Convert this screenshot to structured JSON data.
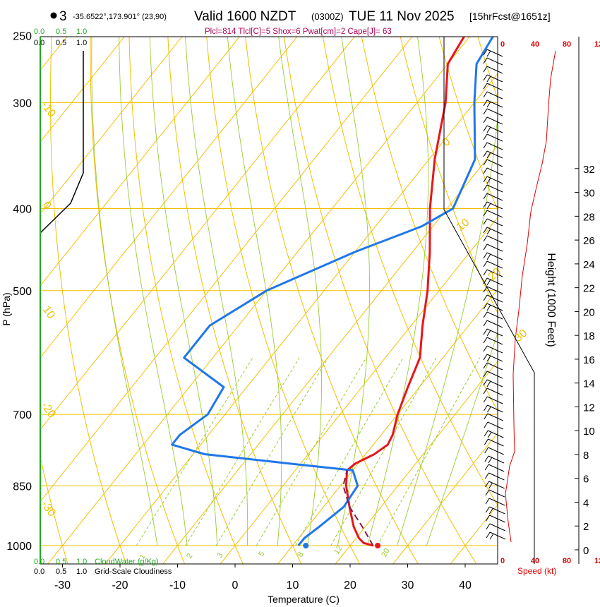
{
  "header": {
    "point_number": "3",
    "coords": "-35.6522°,173.901° (23,90)",
    "title": "Valid 1600 NZDT",
    "utc": "(0300Z)",
    "date": "TUE 11 Nov 2025",
    "forecast": "[15hrFcst@1651z]",
    "indices": "Plcl=814 Tlcl[C]=5 Shox=6 Pwat[cm]=2 Cape[J]= 63"
  },
  "colors": {
    "isotherm": "#f0c000",
    "adiabat_dry": "#f0c000",
    "moist_adiabat": "#99cc33",
    "mixing_ratio": "#99cc33",
    "temperature": "#e8161b",
    "dewpoint": "#1f77e8",
    "parcel": "#8b1a4a",
    "cloud_water": "#22aa22",
    "speed_axis": "#e00000",
    "indices_text": "#b0005a"
  },
  "chart_data": {
    "type": "line",
    "title": "Valid 1600 NZDT (0300Z) TUE 11 Nov 2025",
    "xlabel": "Temperature (C)",
    "ylabel": "P (hPa)",
    "right_ylabel": "Height (1000 Feet)",
    "x_ticks": [
      "-30",
      "-20",
      "-10",
      "0",
      "10",
      "20",
      "30",
      "40"
    ],
    "p_ticks": [
      "250",
      "300",
      "400",
      "500",
      "700",
      "850",
      "1000"
    ],
    "height_ticks": [
      "0",
      "2",
      "4",
      "6",
      "8",
      "10",
      "12",
      "14",
      "16",
      "18",
      "20",
      "22",
      "24",
      "26",
      "28",
      "30",
      "32"
    ],
    "isotherm_labels": [
      "-10",
      "0",
      "10",
      "-20",
      "-30",
      "0",
      "10",
      "20",
      "30"
    ],
    "mixing_ratio_labels": [
      "1",
      "2",
      "3",
      "5",
      "8",
      "12",
      "20"
    ],
    "cloud_labels": {
      "top_green": [
        "0.0",
        "0.5",
        "1.0"
      ],
      "top_black": [
        "0.0",
        "0.5",
        "1.0"
      ],
      "bottom_green": [
        "0.0",
        "0.5",
        "1.0"
      ],
      "bottom_black": [
        "0.0",
        "0.5",
        "1.0"
      ],
      "cloud_water": "CloudWater (g/Kg)",
      "cloudiness": "Grid-Scale Cloudiness"
    },
    "speed_axis": {
      "top": [
        "0",
        "40",
        "80",
        "12"
      ],
      "bottom": [
        "0",
        "40",
        "80",
        "12"
      ],
      "label": "Speed (kt)"
    },
    "series": [
      {
        "name": "temperature",
        "points": [
          [
            1000,
            24.0
          ],
          [
            993,
            22.0
          ],
          [
            980,
            20.5
          ],
          [
            950,
            18.0
          ],
          [
            900,
            14.5
          ],
          [
            850,
            11.0
          ],
          [
            815,
            9.0
          ],
          [
            800,
            9.5
          ],
          [
            780,
            11.5
          ],
          [
            760,
            12.5
          ],
          [
            740,
            12.0
          ],
          [
            700,
            10.0
          ],
          [
            650,
            8.0
          ],
          [
            600,
            6.0
          ],
          [
            550,
            2.0
          ],
          [
            500,
            -2.0
          ],
          [
            450,
            -7.0
          ],
          [
            400,
            -13.0
          ],
          [
            350,
            -19.0
          ],
          [
            300,
            -25.0
          ],
          [
            270,
            -30.0
          ],
          [
            250,
            -31.0
          ]
        ]
      },
      {
        "name": "dewpoint",
        "points": [
          [
            1000,
            11.0
          ],
          [
            980,
            11.0
          ],
          [
            950,
            12.0
          ],
          [
            900,
            13.5
          ],
          [
            850,
            13.0
          ],
          [
            815,
            10.0
          ],
          [
            800,
            -2.0
          ],
          [
            780,
            -18.0
          ],
          [
            760,
            -25.0
          ],
          [
            740,
            -25.0
          ],
          [
            700,
            -23.0
          ],
          [
            650,
            -24.0
          ],
          [
            600,
            -35.0
          ],
          [
            550,
            -35.0
          ],
          [
            500,
            -30.0
          ],
          [
            450,
            -20.0
          ],
          [
            420,
            -12.0
          ],
          [
            400,
            -9.0
          ],
          [
            350,
            -12.0
          ],
          [
            300,
            -20.0
          ],
          [
            270,
            -25.0
          ],
          [
            250,
            -26.0
          ]
        ]
      },
      {
        "name": "parcel",
        "points": [
          [
            1000,
            24.0
          ],
          [
            950,
            19.5
          ],
          [
            900,
            14.5
          ],
          [
            850,
            10.5
          ],
          [
            815,
            9.0
          ]
        ]
      }
    ],
    "markers": [
      {
        "p": 1000,
        "t": 24.8,
        "color": "red"
      },
      {
        "p": 1000,
        "t": 12.3,
        "color": "blue"
      }
    ],
    "grid": true
  }
}
